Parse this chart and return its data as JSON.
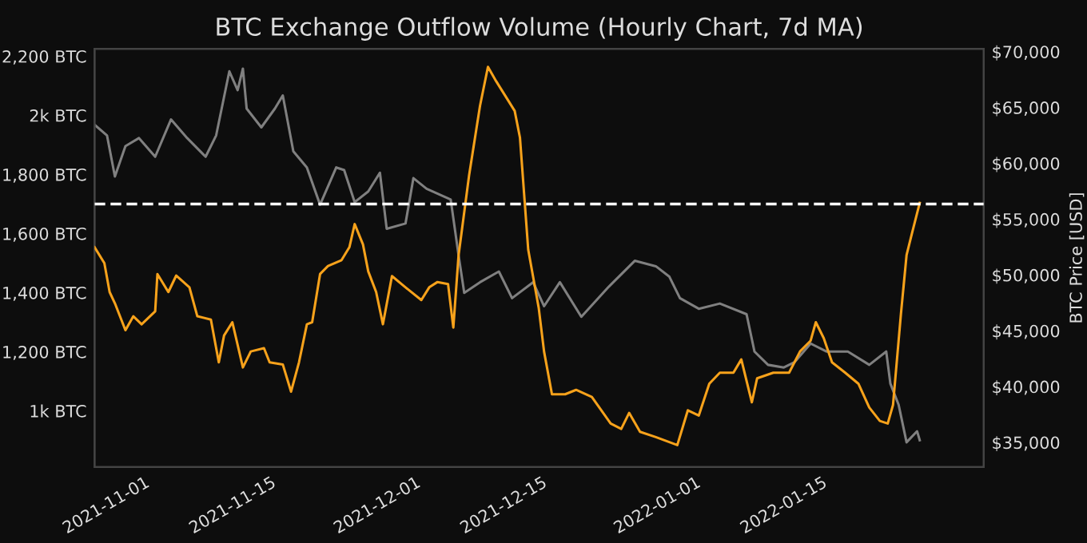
{
  "chart_data": {
    "type": "line",
    "title": "BTC Exchange Outflow Volume (Hourly Chart, 7d MA)",
    "y2label": "BTC Price [USD]",
    "xlim": [
      "2021-10-26T12:00",
      "2022-02-01T22:00"
    ],
    "xticks": [
      "2021-11-01",
      "2021-11-15",
      "2021-12-01",
      "2021-12-15",
      "2022-01-01",
      "2022-01-15"
    ],
    "ylim": [
      810,
      2225
    ],
    "yticks": [
      {
        "value": 1000,
        "label": "1k BTC"
      },
      {
        "value": 1200,
        "label": "1,200 BTC"
      },
      {
        "value": 1400,
        "label": "1,400 BTC"
      },
      {
        "value": 1600,
        "label": "1,600 BTC"
      },
      {
        "value": 1800,
        "label": "1,800 BTC"
      },
      {
        "value": 2000,
        "label": "2k BTC"
      },
      {
        "value": 2200,
        "label": "2,200 BTC"
      }
    ],
    "y2lim": [
      32800,
      70250
    ],
    "y2ticks": [
      {
        "value": 35000,
        "label": "$35,000"
      },
      {
        "value": 40000,
        "label": "$40,000"
      },
      {
        "value": 45000,
        "label": "$45,000"
      },
      {
        "value": 50000,
        "label": "$50,000"
      },
      {
        "value": 55000,
        "label": "$55,000"
      },
      {
        "value": 60000,
        "label": "$60,000"
      },
      {
        "value": 65000,
        "label": "$65,000"
      },
      {
        "value": 70000,
        "label": "$70,000"
      }
    ],
    "grid": false,
    "ref_lines": [
      {
        "axis": "y",
        "value": 1700,
        "label": null,
        "color": "#ffffff",
        "line_style": "dashed"
      }
    ],
    "series": [
      {
        "color": "#808080",
        "axis": "y2",
        "x": [
          "2021-10-26T12:00",
          "2021-10-27T21:00",
          "2021-10-28T18:00",
          "2021-10-29T22:00",
          "2021-10-31T10:00",
          "2021-11-02T05:00",
          "2021-11-03T23:00",
          "2021-11-05T18:00",
          "2021-11-07T19:00",
          "2021-11-08T23:00",
          "2021-11-10T10:00",
          "2021-11-11T08:00",
          "2021-11-11T22:00",
          "2021-11-12T08:00",
          "2021-11-13T23:00",
          "2021-11-15T11:00",
          "2021-11-16T08:00",
          "2021-11-17T12:00",
          "2021-11-19T00:00",
          "2021-11-20T11:00",
          "2021-11-22T06:00",
          "2021-11-23T03:00",
          "2021-11-24T07:00",
          "2021-11-25T19:00",
          "2021-11-27T02:00",
          "2021-11-27T20:00",
          "2021-11-29T22:00",
          "2021-11-30T19:00",
          "2021-12-02T06:00",
          "2021-12-04T22:00",
          "2021-12-05T19:00",
          "2021-12-06T10:00",
          "2021-12-08T04:00",
          "2021-12-10T06:00",
          "2021-12-11T17:00",
          "2021-12-14T01:00",
          "2021-12-15T06:00",
          "2021-12-17T00:00",
          "2021-12-19T09:00",
          "2021-12-22T08:00",
          "2021-12-25T07:00",
          "2021-12-27T15:00",
          "2021-12-29T03:00",
          "2021-12-30T07:00",
          "2022-01-01T09:00",
          "2022-01-03T17:00",
          "2022-01-06T16:00",
          "2022-01-07T13:00",
          "2022-01-09T01:00",
          "2022-01-10T19:00",
          "2022-01-11T23:00",
          "2022-01-13T18:00",
          "2022-01-15T12:00",
          "2022-01-17T21:00",
          "2022-01-20T06:00",
          "2022-01-22T03:00",
          "2022-01-22T14:00",
          "2022-01-23T12:00",
          "2022-01-24T09:00",
          "2022-01-25T13:00",
          "2022-01-25T20:00"
        ],
        "values": [
          63460,
          62500,
          58820,
          61540,
          62260,
          60590,
          63930,
          62260,
          60590,
          62500,
          68240,
          66560,
          68480,
          64900,
          63220,
          64900,
          66080,
          61070,
          59630,
          56290,
          59630,
          59390,
          56520,
          57480,
          59160,
          54140,
          54610,
          58670,
          57720,
          56760,
          51750,
          48400,
          49350,
          50310,
          47920,
          49350,
          47200,
          49350,
          46250,
          48880,
          51270,
          50780,
          49840,
          47920,
          46970,
          47440,
          46480,
          43140,
          41950,
          41710,
          42180,
          43860,
          43140,
          43140,
          41950,
          43140,
          40270,
          38360,
          35010,
          36000,
          35200
        ]
      },
      {
        "color": "#f7a21b",
        "x": [
          "2021-10-26T12:00",
          "2021-10-27T14:00",
          "2021-10-28T04:00",
          "2021-10-28T18:00",
          "2021-10-29T22:00",
          "2021-10-30T19:00",
          "2021-10-31T17:00",
          "2021-11-02T05:00",
          "2021-11-02T11:00",
          "2021-11-03T16:00",
          "2021-11-04T13:00",
          "2021-11-06T00:00",
          "2021-11-06T21:00",
          "2021-11-08T09:00",
          "2021-11-09T06:00",
          "2021-11-09T20:00",
          "2021-11-10T18:00",
          "2021-11-11T22:00",
          "2021-11-12T19:00",
          "2021-11-14T06:00",
          "2021-11-14T21:00",
          "2021-11-16T08:00",
          "2021-11-17T06:00",
          "2021-11-18T03:00",
          "2021-11-19T00:00",
          "2021-11-19T14:00",
          "2021-11-20T11:00",
          "2021-11-21T08:00",
          "2021-11-22T20:00",
          "2021-11-23T17:00",
          "2021-11-24T07:00",
          "2021-11-25T05:00",
          "2021-11-25T19:00",
          "2021-11-26T16:00",
          "2021-11-27T10:00",
          "2021-11-28T10:00",
          "2021-11-29T22:00",
          "2021-12-01T16:00",
          "2021-12-02T13:00",
          "2021-12-03T11:00",
          "2021-12-04T15:00",
          "2021-12-05T05:00",
          "2021-12-05T19:00",
          "2021-12-06T23:00",
          "2021-12-08T04:00",
          "2021-12-09T01:00",
          "2021-12-09T23:00",
          "2021-12-12T00:00",
          "2021-12-12T14:00",
          "2021-12-13T12:00",
          "2021-12-14T16:00",
          "2021-12-15T06:00",
          "2021-12-16T03:00",
          "2021-12-17T14:00",
          "2021-12-18T19:00",
          "2021-12-20T13:00",
          "2021-12-22T15:00",
          "2021-12-23T19:00",
          "2021-12-24T16:00",
          "2021-12-25T21:00",
          "2021-12-27T15:00",
          "2021-12-30T00:00",
          "2021-12-31T04:00",
          "2022-01-01T09:00",
          "2022-01-02T13:00",
          "2022-01-03T17:00",
          "2022-01-05T05:00",
          "2022-01-06T02:00",
          "2022-01-07T06:00",
          "2022-01-07T20:00",
          "2022-01-09T15:00",
          "2022-01-11T09:00",
          "2022-01-12T14:00",
          "2022-01-13T18:00",
          "2022-01-14T08:00",
          "2022-01-15T05:00",
          "2022-01-16T03:00",
          "2022-01-17T14:00",
          "2022-01-19T01:00",
          "2022-01-20T06:00",
          "2022-01-21T10:00",
          "2022-01-22T07:00",
          "2022-01-22T21:00",
          "2022-01-23T18:00",
          "2022-01-24T09:00",
          "2022-01-24T23:00",
          "2022-01-25T20:00"
        ],
        "values": [
          1554,
          1500,
          1402,
          1364,
          1273,
          1320,
          1293,
          1337,
          1463,
          1402,
          1458,
          1418,
          1320,
          1309,
          1164,
          1255,
          1300,
          1147,
          1201,
          1212,
          1164,
          1157,
          1065,
          1164,
          1293,
          1300,
          1463,
          1490,
          1510,
          1554,
          1632,
          1563,
          1472,
          1402,
          1293,
          1456,
          1418,
          1375,
          1418,
          1436,
          1429,
          1282,
          1527,
          1798,
          2033,
          2164,
          2115,
          2015,
          1925,
          1545,
          1347,
          1201,
          1056,
          1056,
          1071,
          1047,
          957,
          939,
          993,
          929,
          911,
          884,
          1002,
          984,
          1092,
          1129,
          1129,
          1174,
          1029,
          1110,
          1129,
          1129,
          1201,
          1237,
          1300,
          1246,
          1164,
          1129,
          1092,
          1011,
          966,
          957,
          1020,
          1327,
          1527,
          1599,
          1704
        ]
      }
    ]
  }
}
